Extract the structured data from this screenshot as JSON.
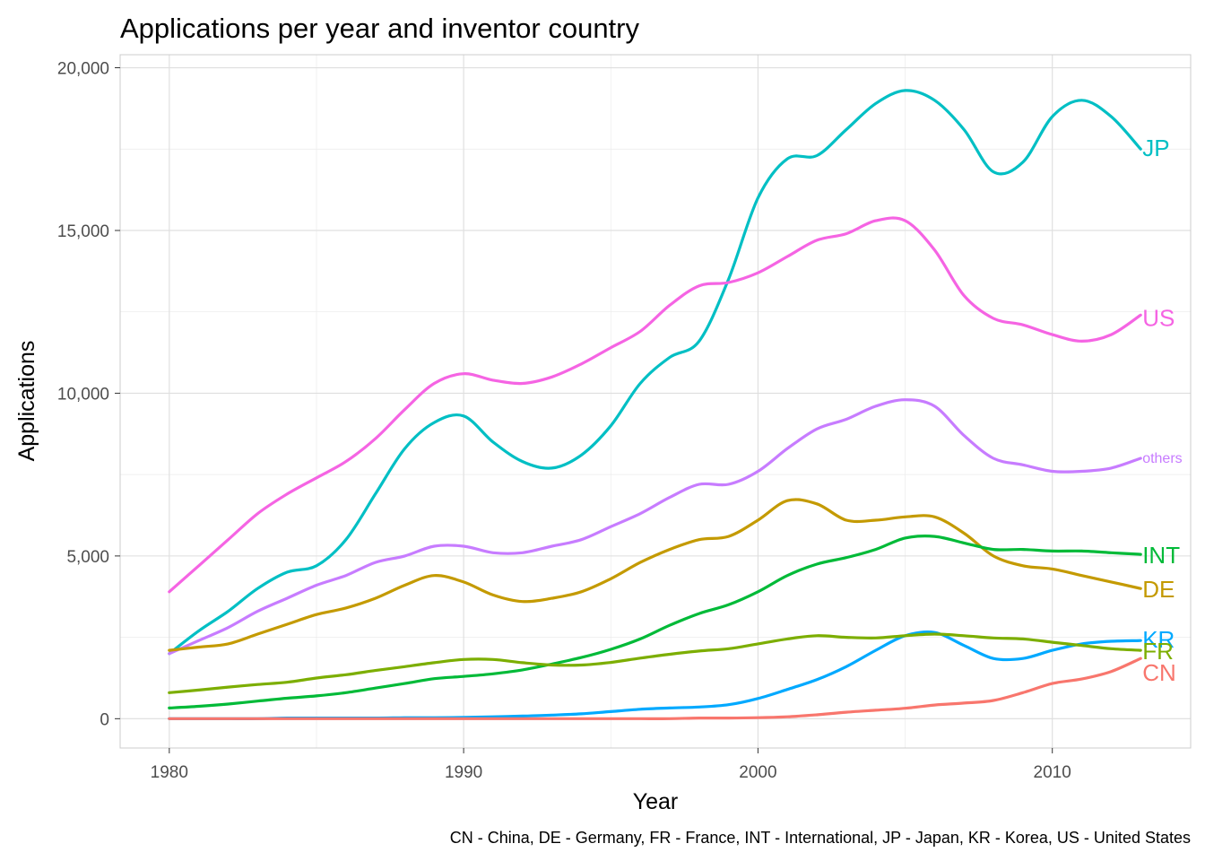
{
  "chart_data": {
    "type": "line",
    "title": "Applications per year and inventor country",
    "xlabel": "Year",
    "ylabel": "Applications",
    "caption": "CN - China, DE - Germany, FR - France, INT - International, JP - Japan, KR - Korea, US - United States",
    "xlim": [
      1978.33,
      2014.7
    ],
    "ylim": [
      -900,
      20400
    ],
    "x_ticks": [
      1980,
      1990,
      2000,
      2010
    ],
    "x_tick_labels": [
      "1980",
      "1990",
      "2000",
      "2010"
    ],
    "y_ticks": [
      0,
      5000,
      10000,
      15000,
      20000
    ],
    "y_tick_labels": [
      "0",
      "5,000",
      "10,000",
      "15,000",
      "20,000"
    ],
    "grid": true,
    "legend": "none (direct labels at line ends)",
    "x": [
      1980,
      1981,
      1982,
      1983,
      1984,
      1985,
      1986,
      1987,
      1988,
      1989,
      1990,
      1991,
      1992,
      1993,
      1994,
      1995,
      1996,
      1997,
      1998,
      1999,
      2000,
      2001,
      2002,
      2003,
      2004,
      2005,
      2006,
      2007,
      2008,
      2009,
      2010,
      2011,
      2012,
      2013
    ],
    "series": [
      {
        "name": "JP",
        "color": "#00BFC4",
        "label": "JP",
        "values": [
          2000,
          2700,
          3300,
          4000,
          4500,
          4700,
          5500,
          6900,
          8300,
          9100,
          9300,
          8500,
          7900,
          7700,
          8100,
          9000,
          10300,
          11100,
          11600,
          13500,
          16000,
          17200,
          17300,
          18100,
          18900,
          19300,
          19000,
          18100,
          16800,
          17100,
          18500,
          19000,
          18500,
          17500
        ]
      },
      {
        "name": "US",
        "color": "#F564E3",
        "label": "US",
        "values": [
          3900,
          4700,
          5500,
          6300,
          6900,
          7400,
          7900,
          8600,
          9500,
          10300,
          10600,
          10400,
          10300,
          10500,
          10900,
          11400,
          11900,
          12700,
          13300,
          13400,
          13700,
          14200,
          14700,
          14900,
          15300,
          15300,
          14400,
          13000,
          12300,
          12100,
          11800,
          11600,
          11800,
          12400
        ]
      },
      {
        "name": "others",
        "color": "#C77CFF",
        "label": "others",
        "values": [
          2000,
          2400,
          2800,
          3300,
          3700,
          4100,
          4400,
          4800,
          5000,
          5300,
          5300,
          5100,
          5100,
          5300,
          5500,
          5900,
          6300,
          6800,
          7200,
          7200,
          7600,
          8300,
          8900,
          9200,
          9600,
          9800,
          9600,
          8700,
          8000,
          7800,
          7600,
          7600,
          7700,
          8000
        ]
      },
      {
        "name": "DE",
        "color": "#C49A00",
        "label": "DE",
        "values": [
          2100,
          2200,
          2300,
          2600,
          2900,
          3200,
          3400,
          3700,
          4100,
          4400,
          4200,
          3800,
          3600,
          3700,
          3900,
          4300,
          4800,
          5200,
          5500,
          5600,
          6100,
          6700,
          6600,
          6100,
          6100,
          6200,
          6200,
          5700,
          5000,
          4700,
          4600,
          4400,
          4200,
          4000
        ]
      },
      {
        "name": "INT",
        "color": "#00BA38",
        "label": "INT",
        "values": [
          330,
          380,
          450,
          540,
          630,
          700,
          800,
          940,
          1080,
          1230,
          1300,
          1380,
          1500,
          1680,
          1880,
          2130,
          2450,
          2870,
          3230,
          3500,
          3900,
          4400,
          4750,
          4950,
          5200,
          5550,
          5600,
          5400,
          5200,
          5200,
          5150,
          5150,
          5100,
          5050
        ]
      },
      {
        "name": "KR",
        "color": "#00A9FF",
        "label": "KR",
        "values": [
          0,
          0,
          0,
          0,
          20,
          20,
          20,
          20,
          30,
          30,
          40,
          60,
          80,
          110,
          150,
          220,
          290,
          330,
          360,
          430,
          620,
          900,
          1200,
          1600,
          2100,
          2550,
          2650,
          2250,
          1850,
          1850,
          2100,
          2300,
          2380,
          2400
        ]
      },
      {
        "name": "FR",
        "color": "#7CAE00",
        "label": "FR",
        "values": [
          800,
          880,
          970,
          1050,
          1120,
          1250,
          1350,
          1480,
          1600,
          1720,
          1820,
          1820,
          1720,
          1650,
          1650,
          1730,
          1860,
          1980,
          2080,
          2150,
          2300,
          2450,
          2550,
          2500,
          2480,
          2550,
          2600,
          2550,
          2480,
          2450,
          2350,
          2250,
          2150,
          2100
        ]
      },
      {
        "name": "CN",
        "color": "#F8766D",
        "label": "CN",
        "values": [
          0,
          0,
          0,
          0,
          0,
          0,
          0,
          0,
          0,
          0,
          0,
          0,
          0,
          0,
          0,
          0,
          0,
          0,
          20,
          20,
          30,
          60,
          120,
          200,
          260,
          320,
          420,
          480,
          560,
          800,
          1080,
          1220,
          1450,
          1850
        ]
      }
    ]
  }
}
